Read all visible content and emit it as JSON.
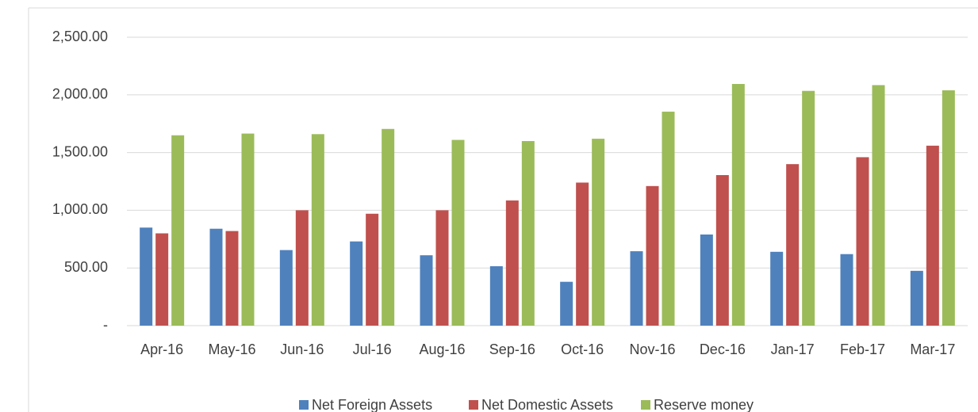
{
  "chart_data": {
    "type": "bar",
    "categories": [
      "Apr-16",
      "May-16",
      "Jun-16",
      "Jul-16",
      "Aug-16",
      "Sep-16",
      "Oct-16",
      "Nov-16",
      "Dec-16",
      "Jan-17",
      "Feb-17",
      "Mar-17"
    ],
    "series": [
      {
        "name": "Net Foreign Assets",
        "color": "#4f81bd",
        "values": [
          850,
          840,
          655,
          730,
          610,
          515,
          380,
          645,
          790,
          640,
          620,
          475
        ]
      },
      {
        "name": "Net Domestic Assets",
        "color": "#c0504d",
        "values": [
          800,
          820,
          1000,
          970,
          1000,
          1085,
          1240,
          1210,
          1305,
          1400,
          1460,
          1560
        ]
      },
      {
        "name": "Reserve money",
        "color": "#9bbb59",
        "values": [
          1650,
          1665,
          1660,
          1705,
          1610,
          1600,
          1620,
          1855,
          2095,
          2035,
          2085,
          2040
        ]
      }
    ],
    "ylim": [
      0,
      2500
    ],
    "yticks": [
      {
        "value": 0,
        "label": "-"
      },
      {
        "value": 500,
        "label": "500.00"
      },
      {
        "value": 1000,
        "label": "1,000.00"
      },
      {
        "value": 1500,
        "label": "1,500.00"
      },
      {
        "value": 2000,
        "label": "2,000.00"
      },
      {
        "value": 2500,
        "label": "2,500.00"
      }
    ],
    "grid": true,
    "legend": "bottom"
  }
}
